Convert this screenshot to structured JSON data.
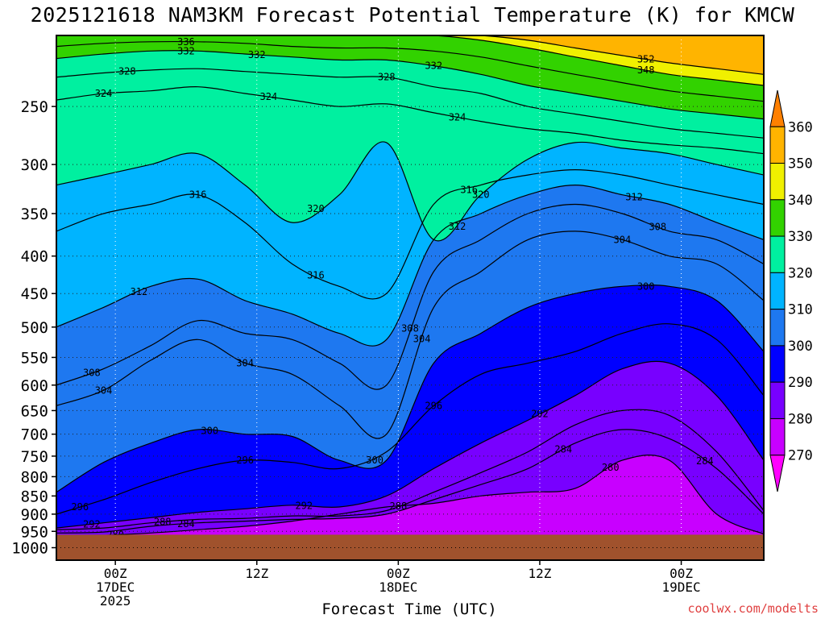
{
  "chart_data": {
    "type": "contour",
    "title": "2025121618 NAM3KM Forecast Potential Temperature (K) for KMCW",
    "xlabel": "Forecast Time (UTC)",
    "credit": "coolwx.com/modelts",
    "y_axis": {
      "label": "",
      "scale": "log",
      "reversed": true,
      "ticks": [
        250,
        300,
        350,
        400,
        450,
        500,
        550,
        600,
        650,
        700,
        750,
        800,
        850,
        900,
        950,
        1000
      ],
      "range": [
        200,
        1040
      ]
    },
    "x_axis": {
      "range_hours": [
        -5,
        55
      ],
      "ticks": [
        {
          "hour": 0,
          "lines": [
            "00Z",
            "17DEC",
            "2025"
          ]
        },
        {
          "hour": 12,
          "lines": [
            "12Z"
          ]
        },
        {
          "hour": 24,
          "lines": [
            "00Z",
            "18DEC"
          ]
        },
        {
          "hour": 36,
          "lines": [
            "12Z"
          ]
        },
        {
          "hour": 48,
          "lines": [
            "00Z",
            "19DEC"
          ]
        }
      ]
    },
    "colorbar": {
      "levels": [
        270,
        280,
        290,
        300,
        310,
        320,
        330,
        340,
        350,
        360
      ],
      "colors": [
        "#ff00ff",
        "#c800ff",
        "#7800ff",
        "#0000ff",
        "#1e78f0",
        "#00b4ff",
        "#00f0a0",
        "#32d200",
        "#f0f000",
        "#ffb400",
        "#ff8000"
      ]
    },
    "surface_color": "#a0522d",
    "surface_pressure_hpa": 960,
    "grid": true,
    "series": [
      {
        "level": 280,
        "label_hours": [
          0,
          42
        ],
        "pressure": [
          965,
          962,
          955,
          945,
          935,
          920,
          900,
          880,
          870,
          850,
          840,
          830,
          760,
          760,
          900,
          958
        ]
      },
      {
        "level": 284,
        "label_hours": [
          6,
          38,
          50
        ],
        "pressure": [
          955,
          952,
          935,
          925,
          920,
          915,
          912,
          900,
          860,
          820,
          780,
          720,
          690,
          710,
          780,
          900
        ]
      },
      {
        "level": 288,
        "label_hours": [
          4,
          24
        ],
        "pressure": [
          945,
          940,
          925,
          915,
          912,
          905,
          905,
          890,
          840,
          790,
          740,
          680,
          650,
          660,
          740,
          890
        ]
      },
      {
        "level": 292,
        "label_hours": [
          -2,
          16,
          36
        ],
        "pressure": [
          940,
          925,
          910,
          895,
          885,
          875,
          880,
          850,
          780,
          720,
          670,
          620,
          570,
          560,
          620,
          760
        ]
      },
      {
        "level": 296,
        "label_hours": [
          -3,
          11,
          27
        ],
        "pressure": [
          900,
          860,
          815,
          780,
          760,
          765,
          780,
          740,
          640,
          580,
          560,
          540,
          510,
          495,
          520,
          620
        ]
      },
      {
        "level": 300,
        "label_hours": [
          8,
          22,
          45
        ],
        "pressure": [
          840,
          765,
          720,
          690,
          700,
          705,
          760,
          760,
          560,
          510,
          470,
          450,
          440,
          440,
          460,
          540
        ]
      },
      {
        "level": 304,
        "label_hours": [
          -1,
          11,
          26,
          43
        ],
        "pressure": [
          640,
          610,
          555,
          520,
          560,
          580,
          640,
          700,
          470,
          420,
          380,
          370,
          380,
          400,
          410,
          460
        ]
      },
      {
        "level": 308,
        "label_hours": [
          -2,
          25,
          46
        ],
        "pressure": [
          600,
          570,
          530,
          490,
          510,
          520,
          560,
          600,
          420,
          380,
          350,
          340,
          350,
          370,
          380,
          410
        ]
      },
      {
        "level": 312,
        "label_hours": [
          2,
          29,
          44
        ],
        "pressure": [
          500,
          470,
          440,
          430,
          460,
          480,
          510,
          520,
          380,
          350,
          330,
          320,
          330,
          340,
          360,
          380
        ]
      },
      {
        "level": 316,
        "label_hours": [
          7,
          17,
          30
        ],
        "pressure": [
          370,
          350,
          340,
          330,
          360,
          410,
          440,
          450,
          340,
          320,
          310,
          305,
          310,
          320,
          330,
          340
        ]
      },
      {
        "level": 320,
        "label_hours": [
          17,
          31
        ],
        "pressure": [
          320,
          310,
          300,
          290,
          320,
          360,
          330,
          280,
          380,
          330,
          295,
          280,
          285,
          290,
          300,
          310
        ]
      },
      {
        "level": 324,
        "label_hours": [
          -1,
          13,
          29
        ],
        "pressure": [
          245,
          240,
          238,
          235,
          240,
          245,
          250,
          248,
          255,
          262,
          268,
          272,
          278,
          282,
          285,
          290
        ]
      },
      {
        "level": 328,
        "label_hours": [
          1,
          23
        ],
        "pressure": [
          228,
          225,
          223,
          222,
          224,
          226,
          228,
          228,
          235,
          240,
          250,
          256,
          262,
          268,
          272,
          276
        ]
      },
      {
        "level": 332,
        "label_hours": [
          6,
          12,
          27
        ],
        "pressure": [
          215,
          212,
          210,
          210,
          212,
          214,
          216,
          216,
          220,
          226,
          234,
          240,
          246,
          252,
          256,
          260
        ]
      },
      {
        "level": 336,
        "label_hours": [
          6
        ],
        "pressure": [
          207,
          205,
          204,
          204,
          205,
          207,
          208,
          208,
          210,
          214,
          220,
          226,
          232,
          238,
          242,
          246
        ]
      },
      {
        "level": 348,
        "label_hours": [
          45
        ],
        "pressure": [
          200,
          200,
          200,
          200,
          200,
          200,
          200,
          200,
          200,
          203,
          208,
          214,
          220,
          226,
          230,
          234
        ]
      },
      {
        "level": 352,
        "label_hours": [
          45
        ],
        "pressure": [
          199,
          199,
          199,
          199,
          199,
          199,
          199,
          199,
          199,
          200,
          203,
          208,
          213,
          218,
          222,
          226
        ]
      }
    ],
    "sample_hours": [
      -5,
      -1,
      3,
      7,
      11,
      15,
      19,
      23,
      27,
      31,
      35,
      39,
      43,
      47,
      51,
      55
    ]
  }
}
